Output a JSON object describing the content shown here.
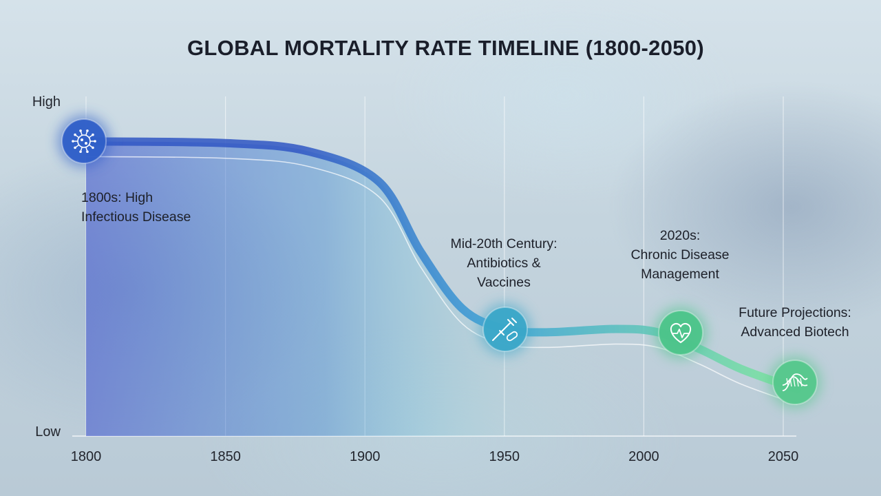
{
  "chart_data": {
    "type": "area",
    "title": "GLOBAL MORTALITY RATE TIMELINE (1800-2050)",
    "xlabel": "",
    "ylabel": "",
    "x_ticks": [
      "1800",
      "1850",
      "1900",
      "1950",
      "2000",
      "2050"
    ],
    "y_ticks": [
      "High",
      "Low"
    ],
    "xlim": [
      1800,
      2050
    ],
    "ylim": [
      0,
      1
    ],
    "grid": "vertical",
    "series": [
      {
        "x": [
          1800,
          1850,
          1880,
          1905,
          1920,
          1935,
          1950,
          1965,
          1990,
          2005,
          2020,
          2035,
          2055
        ],
        "y": [
          0.88,
          0.875,
          0.85,
          0.76,
          0.55,
          0.38,
          0.32,
          0.31,
          0.32,
          0.31,
          0.26,
          0.2,
          0.14
        ]
      }
    ],
    "milestones": [
      {
        "x": 1798,
        "y": 0.88,
        "icon": "virus-icon",
        "color": "#2f5fc8",
        "label_lines": [
          "1800s: High",
          "Infectious Disease"
        ]
      },
      {
        "x": 1950,
        "y": 0.3,
        "icon": "syringe-pill-icon",
        "color": "#3aa6c8",
        "label_lines": [
          "Mid-20th Century:",
          "Antibiotics &",
          "Vaccines"
        ]
      },
      {
        "x": 2013,
        "y": 0.3,
        "icon": "heart-pulse-icon",
        "color": "#4cc48a",
        "label_lines": [
          "2020s:",
          "Chronic Disease",
          "Management"
        ]
      },
      {
        "x": 2055,
        "y": 0.14,
        "icon": "dna-icon",
        "color": "#55c78c",
        "label_lines": [
          "Future Projections:",
          "Advanced Biotech"
        ]
      }
    ],
    "colors": {
      "start": "#3056c4",
      "mid": "#3aa3d6",
      "end": "#7ee89a"
    }
  }
}
